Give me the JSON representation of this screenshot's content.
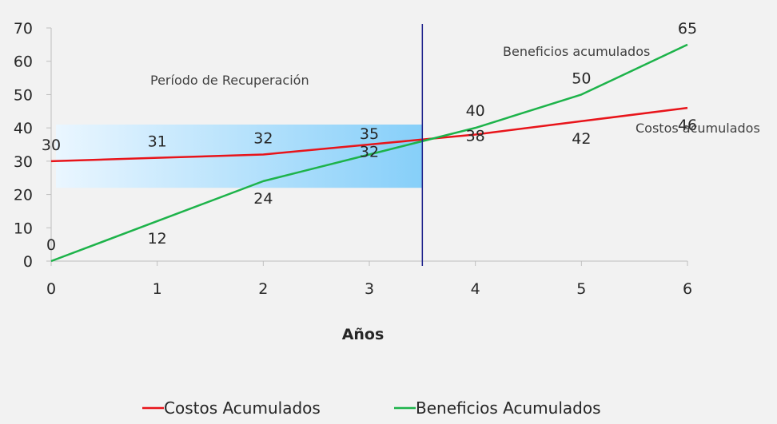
{
  "chart_data": {
    "type": "line",
    "xlabel": "Años",
    "ylabel": "",
    "x": [
      0,
      1,
      2,
      3,
      4,
      5,
      6
    ],
    "xlim": [
      0,
      6
    ],
    "ylim": [
      0,
      70
    ],
    "yticks": [
      0,
      10,
      20,
      30,
      40,
      50,
      60,
      70
    ],
    "xticks": [
      0,
      1,
      2,
      3,
      4,
      5,
      6
    ],
    "grid": false,
    "legend_position": "bottom",
    "series": [
      {
        "name": "Costos Acumulados",
        "color": "#e8141a",
        "values": [
          30,
          31,
          32,
          35,
          38,
          42,
          46
        ]
      },
      {
        "name": "Beneficios Acumulados",
        "color": "#1db34a",
        "values": [
          0,
          12,
          24,
          32,
          40,
          50,
          65
        ]
      }
    ],
    "payback_line_x": 3.5,
    "payback_region": {
      "x": [
        0,
        3.5
      ],
      "y": [
        22,
        41
      ],
      "color_start": "#eaf6ff",
      "color_end": "#86cff9"
    },
    "payback_line_color": "#1b1f8a",
    "annotations": {
      "region": "Período de Recuperación",
      "benefits": "Beneficios acumulados",
      "costs": "Costos acumulados"
    }
  }
}
